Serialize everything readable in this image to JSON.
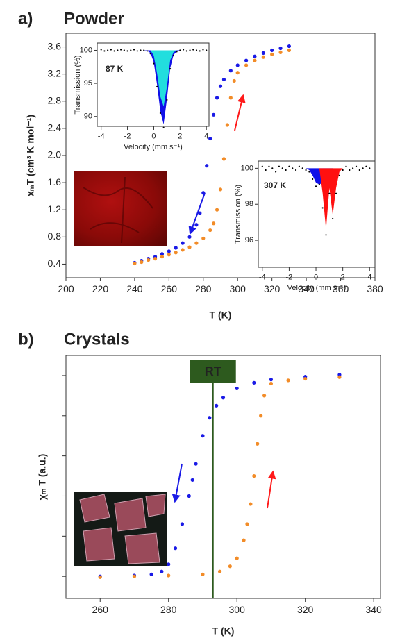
{
  "chart_data": [
    {
      "type": "scatter",
      "label": "a)",
      "title": "Powder",
      "x_label": "T (K)",
      "y_label": "xₘT (cm³ K mol⁻¹)",
      "xlim": [
        200,
        380
      ],
      "xticks": [
        200,
        220,
        240,
        260,
        280,
        300,
        320,
        340,
        360,
        380
      ],
      "ylim": [
        0.2,
        3.8
      ],
      "yticks": [
        0.4,
        0.8,
        1.2,
        1.6,
        {
          "value": 2,
          "label": "2.0"
        },
        2.4,
        2.8,
        3.2,
        3.6
      ],
      "series": [
        {
          "color": "#1a1ae6",
          "style": "points",
          "x": [
            240,
            244,
            248,
            252,
            256,
            260,
            264,
            268,
            272,
            276,
            278,
            280,
            282,
            284,
            286,
            288,
            290,
            292,
            296,
            300,
            305,
            310,
            315,
            320,
            325,
            330
          ],
          "values": [
            0.42,
            0.45,
            0.48,
            0.51,
            0.55,
            0.59,
            0.64,
            0.71,
            0.8,
            0.98,
            1.15,
            1.45,
            1.85,
            2.25,
            2.6,
            2.85,
            3.02,
            3.12,
            3.25,
            3.33,
            3.4,
            3.46,
            3.51,
            3.55,
            3.58,
            3.61
          ]
        },
        {
          "color": "#f28c28",
          "style": "points",
          "x": [
            240,
            244,
            248,
            252,
            256,
            260,
            264,
            268,
            272,
            276,
            280,
            284,
            286,
            288,
            290,
            292,
            294,
            296,
            298,
            300,
            305,
            310,
            315,
            320,
            325,
            330
          ],
          "values": [
            0.41,
            0.43,
            0.46,
            0.48,
            0.51,
            0.54,
            0.57,
            0.61,
            0.65,
            0.71,
            0.78,
            0.9,
            1.0,
            1.2,
            1.5,
            1.95,
            2.45,
            2.85,
            3.1,
            3.22,
            3.33,
            3.4,
            3.45,
            3.49,
            3.52,
            3.55
          ]
        }
      ]
    },
    {
      "type": "scatter",
      "annotation": "87 K",
      "x_label": "Velocity (mm s⁻¹)",
      "y_label": "Transmission (%)",
      "xlim": [
        -4.3,
        4.2
      ],
      "xticks": [
        -4,
        -2,
        0,
        2,
        4
      ],
      "ylim": [
        88.5,
        101.1
      ],
      "yticks": [
        90,
        95,
        100
      ],
      "series": [
        {
          "color": "#1010e8",
          "style": "fill",
          "x": [
            -4,
            -3.75,
            -3.5,
            -3.25,
            -3,
            -2.75,
            -2.5,
            -2.25,
            -2,
            -1.75,
            -1.5,
            -1.25,
            -1,
            -0.75,
            -0.5,
            -0.25,
            0,
            0.25,
            0.5,
            0.75,
            1,
            1.25,
            1.5,
            1.75,
            2,
            2.25,
            2.5,
            2.75,
            3,
            3.25,
            3.5,
            3.75,
            4
          ],
          "values": [
            100,
            100,
            100,
            100,
            100,
            100,
            100,
            100,
            100,
            100,
            100,
            100,
            100,
            100,
            99.9,
            99.6,
            98.2,
            94.8,
            90.8,
            88.8,
            92.6,
            97.3,
            99.3,
            99.8,
            100,
            100,
            100,
            100,
            100,
            100,
            100,
            100,
            100
          ]
        },
        {
          "color": "#22dede",
          "style": "fill",
          "x": [
            -4,
            -3.75,
            -3.5,
            -3.25,
            -3,
            -2.75,
            -2.5,
            -2.25,
            -2,
            -1.75,
            -1.5,
            -1.25,
            -1,
            -0.75,
            -0.5,
            -0.25,
            0,
            0.25,
            0.5,
            0.75,
            1,
            1.25,
            1.5,
            1.75,
            2,
            2.25,
            2.5,
            2.75,
            3,
            3.25,
            3.5,
            3.75,
            4
          ],
          "values": [
            100,
            100,
            100,
            100,
            100,
            100,
            100,
            100,
            100,
            100,
            100,
            100,
            100,
            100,
            100,
            100,
            99.2,
            96.5,
            93,
            91.5,
            94.5,
            98.5,
            99.7,
            100,
            100,
            100,
            100,
            100,
            100,
            100,
            100,
            100,
            100
          ]
        },
        {
          "color": "#000000",
          "style": "points",
          "x": [
            -4,
            -3.75,
            -3.5,
            -3.25,
            -3,
            -2.75,
            -2.5,
            -2.25,
            -2,
            -1.75,
            -1.5,
            -1.25,
            -1,
            -0.75,
            -0.5,
            -0.25,
            0,
            0.25,
            0.5,
            0.75,
            1,
            1.25,
            1.5,
            1.75,
            2,
            2.25,
            2.5,
            2.75,
            3,
            3.25,
            3.5,
            3.75,
            4
          ],
          "values": [
            100.1,
            99.9,
            100,
            100.1,
            99.9,
            100,
            100.1,
            100,
            99.9,
            100,
            100.1,
            99.9,
            100,
            100,
            99.9,
            99.5,
            98.0,
            94.5,
            90.5,
            88.3,
            92.5,
            97.2,
            99.2,
            99.8,
            100,
            100.1,
            99.9,
            100,
            100.1,
            100,
            99.9,
            100.1,
            100
          ]
        }
      ]
    },
    {
      "type": "scatter",
      "annotation": "307 K",
      "x_label": "Velocity (mm s⁻¹)",
      "y_label": "Transmission (%)",
      "xlim": [
        -4.3,
        4.4
      ],
      "xticks": [
        -4,
        -2,
        0,
        2,
        4
      ],
      "ylim": [
        94.5,
        100.4
      ],
      "yticks": [
        96,
        98,
        100
      ],
      "series": [
        {
          "color": "#1010e8",
          "style": "fill",
          "x": [
            -4,
            -3.75,
            -3.5,
            -3.25,
            -3,
            -2.75,
            -2.5,
            -2.25,
            -2,
            -1.75,
            -1.5,
            -1.25,
            -1,
            -0.75,
            -0.5,
            -0.25,
            0,
            0.25,
            0.5,
            0.75,
            1,
            1.25,
            1.5,
            1.75,
            2,
            2.25,
            2.5,
            2.75,
            3,
            3.25,
            3.5,
            3.75,
            4
          ],
          "values": [
            100,
            100,
            100,
            100,
            100,
            100,
            100,
            100,
            100,
            100,
            100,
            100,
            100,
            100,
            99.9,
            99.6,
            99.2,
            99.1,
            99.2,
            99.5,
            99.8,
            100,
            100,
            100,
            100,
            100,
            100,
            100,
            100,
            100,
            100,
            100,
            100
          ]
        },
        {
          "color": "#ff1010",
          "style": "fill",
          "x": [
            -4,
            -3.75,
            -3.5,
            -3.25,
            -3,
            -2.75,
            -2.5,
            -2.25,
            -2,
            -1.75,
            -1.5,
            -1.25,
            -1,
            -0.75,
            -0.5,
            -0.25,
            0,
            0.25,
            0.5,
            0.75,
            1,
            1.25,
            1.5,
            1.75,
            2,
            2.25,
            2.5,
            2.75,
            3,
            3.25,
            3.5,
            3.75,
            4
          ],
          "values": [
            100,
            100,
            100,
            100,
            100,
            100,
            100,
            100,
            100,
            100,
            100,
            100,
            100,
            100,
            100,
            100,
            100,
            100,
            98.6,
            96.6,
            98.9,
            97.4,
            98.9,
            99.8,
            100,
            100,
            100,
            100,
            100,
            100,
            100,
            100,
            100
          ]
        },
        {
          "color": "#000000",
          "style": "points",
          "x": [
            -4,
            -3.75,
            -3.5,
            -3.25,
            -3,
            -2.75,
            -2.5,
            -2.25,
            -2,
            -1.75,
            -1.5,
            -1.25,
            -1,
            -0.75,
            -0.5,
            -0.25,
            0,
            0.25,
            0.5,
            0.75,
            1,
            1.25,
            1.5,
            1.75,
            2,
            2.25,
            2.5,
            2.75,
            3,
            3.25,
            3.5,
            3.75,
            4
          ],
          "values": [
            100.1,
            99.9,
            100.1,
            100,
            99.8,
            100.1,
            100,
            99.9,
            100.1,
            100,
            99.9,
            100.1,
            100,
            99.9,
            99.8,
            99.4,
            99.0,
            99.1,
            97.8,
            96.3,
            98.6,
            97.2,
            98.6,
            99.6,
            99.9,
            100.1,
            99.9,
            100,
            100.1,
            99.9,
            100,
            100.1,
            100
          ]
        }
      ]
    },
    {
      "type": "scatter",
      "label": "b)",
      "title": "Crystals",
      "x_label": "T (K)",
      "y_label": "χₘ T (a.u.)",
      "xlim": [
        250,
        342
      ],
      "xticks": [
        260,
        280,
        300,
        320,
        340
      ],
      "ylim": [
        -0.55,
        5.5
      ],
      "yticks": [
        0,
        1,
        2,
        3,
        4,
        5
      ],
      "ytick_labels": false,
      "annotations": [
        {
          "label": "RT",
          "x": 293,
          "color": "#2d5a1e"
        }
      ],
      "series": [
        {
          "color": "#1a1ae6",
          "style": "points",
          "x": [
            260,
            270,
            275,
            278,
            280,
            282,
            284,
            286,
            287,
            288,
            290,
            292,
            294,
            296,
            300,
            305,
            310,
            320,
            330
          ],
          "values": [
            0.0,
            0.02,
            0.05,
            0.12,
            0.3,
            0.7,
            1.3,
            2.0,
            2.4,
            2.8,
            3.5,
            3.95,
            4.25,
            4.45,
            4.68,
            4.82,
            4.9,
            4.97,
            5.02
          ]
        },
        {
          "color": "#f28c28",
          "style": "points",
          "x": [
            260,
            270,
            280,
            290,
            295,
            298,
            300,
            302,
            303,
            304,
            305,
            306,
            307,
            308,
            310,
            315,
            320,
            330
          ],
          "values": [
            -0.02,
            0,
            0.02,
            0.05,
            0.12,
            0.25,
            0.45,
            0.9,
            1.3,
            1.8,
            2.5,
            3.3,
            4.0,
            4.5,
            4.8,
            4.88,
            4.92,
            4.96
          ]
        }
      ]
    }
  ]
}
